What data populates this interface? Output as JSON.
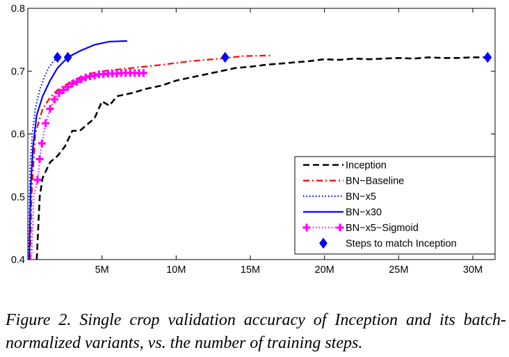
{
  "chart_data": {
    "type": "line",
    "title": "",
    "xlabel": "",
    "ylabel": "",
    "xlim": [
      0,
      31500000
    ],
    "ylim": [
      0.4,
      0.8
    ],
    "x_ticks": [
      {
        "value": 5000000,
        "label": "5M"
      },
      {
        "value": 10000000,
        "label": "10M"
      },
      {
        "value": 15000000,
        "label": "15M"
      },
      {
        "value": 20000000,
        "label": "20M"
      },
      {
        "value": 25000000,
        "label": "25M"
      },
      {
        "value": 30000000,
        "label": "30M"
      }
    ],
    "y_ticks": [
      {
        "value": 0.4,
        "label": "0.4"
      },
      {
        "value": 0.5,
        "label": "0.5"
      },
      {
        "value": 0.6,
        "label": "0.6"
      },
      {
        "value": 0.7,
        "label": "0.7"
      },
      {
        "value": 0.8,
        "label": "0.8"
      }
    ],
    "grid": false,
    "legend_position": "bottom-right",
    "series": [
      {
        "name": "Inception",
        "color": "#000000",
        "dash": "dashed",
        "marker": "none",
        "points": [
          [
            600000,
            0.4
          ],
          [
            800000,
            0.5
          ],
          [
            1000000,
            0.53
          ],
          [
            1500000,
            0.555
          ],
          [
            2000000,
            0.565
          ],
          [
            2500000,
            0.58
          ],
          [
            3000000,
            0.605
          ],
          [
            3500000,
            0.605
          ],
          [
            4000000,
            0.615
          ],
          [
            4500000,
            0.625
          ],
          [
            5000000,
            0.652
          ],
          [
            5500000,
            0.645
          ],
          [
            6000000,
            0.66
          ],
          [
            7000000,
            0.665
          ],
          [
            8000000,
            0.672
          ],
          [
            9000000,
            0.677
          ],
          [
            10000000,
            0.685
          ],
          [
            11000000,
            0.69
          ],
          [
            12000000,
            0.695
          ],
          [
            13000000,
            0.7
          ],
          [
            14000000,
            0.705
          ],
          [
            15000000,
            0.707
          ],
          [
            16000000,
            0.71
          ],
          [
            17000000,
            0.712
          ],
          [
            18000000,
            0.714
          ],
          [
            19000000,
            0.716
          ],
          [
            20000000,
            0.719
          ],
          [
            21000000,
            0.718
          ],
          [
            22000000,
            0.72
          ],
          [
            23000000,
            0.719
          ],
          [
            24000000,
            0.72
          ],
          [
            25000000,
            0.721
          ],
          [
            26000000,
            0.72
          ],
          [
            27000000,
            0.722
          ],
          [
            28000000,
            0.721
          ],
          [
            29000000,
            0.721
          ],
          [
            30000000,
            0.722
          ],
          [
            31000000,
            0.722
          ]
        ]
      },
      {
        "name": "BN−Baseline",
        "color": "#ff0000",
        "dash": "dashdot",
        "marker": "none",
        "points": [
          [
            150000,
            0.4
          ],
          [
            250000,
            0.5
          ],
          [
            500000,
            0.6
          ],
          [
            1000000,
            0.64
          ],
          [
            1500000,
            0.658
          ],
          [
            2000000,
            0.67
          ],
          [
            3000000,
            0.685
          ],
          [
            4000000,
            0.695
          ],
          [
            5000000,
            0.7
          ],
          [
            7000000,
            0.705
          ],
          [
            9000000,
            0.71
          ],
          [
            11000000,
            0.716
          ],
          [
            13000000,
            0.72
          ],
          [
            14500000,
            0.724
          ],
          [
            16500000,
            0.725
          ]
        ]
      },
      {
        "name": "BN−x5",
        "color": "#0000ff",
        "dash": "dotted",
        "marker": "none",
        "points": [
          [
            50000,
            0.4
          ],
          [
            150000,
            0.55
          ],
          [
            300000,
            0.6
          ],
          [
            500000,
            0.64
          ],
          [
            800000,
            0.67
          ],
          [
            1100000,
            0.69
          ],
          [
            1400000,
            0.705
          ],
          [
            1700000,
            0.715
          ],
          [
            2000000,
            0.722
          ]
        ]
      },
      {
        "name": "BN−x30",
        "color": "#0000ff",
        "dash": "solid",
        "marker": "none",
        "points": [
          [
            100000,
            0.4
          ],
          [
            200000,
            0.52
          ],
          [
            350000,
            0.58
          ],
          [
            600000,
            0.63
          ],
          [
            1000000,
            0.66
          ],
          [
            1500000,
            0.685
          ],
          [
            2000000,
            0.705
          ],
          [
            2700000,
            0.722
          ],
          [
            3500000,
            0.732
          ],
          [
            4500000,
            0.742
          ],
          [
            5500000,
            0.747
          ],
          [
            6700000,
            0.748
          ]
        ]
      },
      {
        "name": "BN−x5−Sigmoid",
        "color": "#ff00ff",
        "dash": "dotted",
        "marker": "plus",
        "points": [
          [
            250000,
            0.4
          ],
          [
            400000,
            0.5
          ],
          [
            650000,
            0.527
          ],
          [
            800000,
            0.56
          ],
          [
            950000,
            0.585
          ],
          [
            1200000,
            0.617
          ],
          [
            1500000,
            0.64
          ],
          [
            1800000,
            0.655
          ],
          [
            2100000,
            0.665
          ],
          [
            2400000,
            0.67
          ],
          [
            2700000,
            0.675
          ],
          [
            3000000,
            0.68
          ],
          [
            3300000,
            0.683
          ],
          [
            3600000,
            0.687
          ],
          [
            3900000,
            0.69
          ],
          [
            4200000,
            0.692
          ],
          [
            4500000,
            0.693
          ],
          [
            4800000,
            0.695
          ],
          [
            5100000,
            0.695
          ],
          [
            5400000,
            0.696
          ],
          [
            5700000,
            0.696
          ],
          [
            6000000,
            0.696
          ],
          [
            6300000,
            0.697
          ],
          [
            6600000,
            0.697
          ],
          [
            6900000,
            0.697
          ],
          [
            7200000,
            0.697
          ],
          [
            7500000,
            0.697
          ],
          [
            7800000,
            0.697
          ]
        ]
      },
      {
        "name": "Steps to match Inception",
        "color": "#0000ff",
        "dash": "none",
        "marker": "diamond",
        "points": [
          [
            2000000,
            0.722
          ],
          [
            2700000,
            0.722
          ],
          [
            13300000,
            0.722
          ],
          [
            31000000,
            0.722
          ]
        ]
      }
    ]
  },
  "caption": {
    "figure_number": "Figure 2.",
    "text": "Single crop validation accuracy of Inception and its batch-normalized variants, vs. the number of training steps."
  }
}
